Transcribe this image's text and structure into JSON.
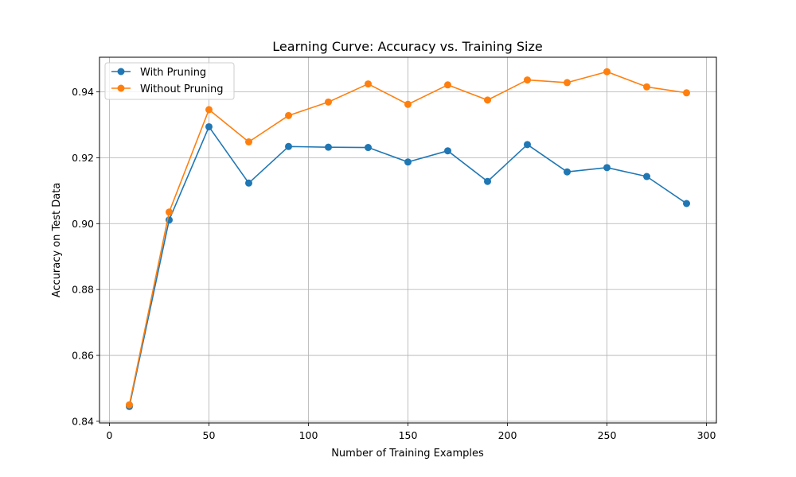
{
  "chart_data": {
    "type": "line",
    "title": "Learning Curve: Accuracy vs. Training Size",
    "xlabel": "Number of Training Examples",
    "ylabel": "Accuracy on Test Data",
    "xlim": [
      -5,
      305
    ],
    "ylim": [
      0.8395,
      0.9505
    ],
    "xticks": [
      0,
      50,
      100,
      150,
      200,
      250,
      300
    ],
    "yticks": [
      0.84,
      0.86,
      0.88,
      0.9,
      0.92,
      0.94
    ],
    "ytick_labels": [
      "0.84",
      "0.86",
      "0.88",
      "0.90",
      "0.92",
      "0.94"
    ],
    "grid": true,
    "legend_position": "upper-left",
    "x": [
      10,
      30,
      50,
      70,
      90,
      110,
      130,
      150,
      170,
      190,
      210,
      230,
      250,
      270,
      290
    ],
    "series": [
      {
        "name": "With Pruning",
        "color": "#1f77b4",
        "marker": "circle",
        "values": [
          0.8445,
          0.9011,
          0.9294,
          0.9123,
          0.9234,
          0.9232,
          0.9231,
          0.9187,
          0.9221,
          0.9128,
          0.924,
          0.9157,
          0.917,
          0.9143,
          0.9061
        ]
      },
      {
        "name": "Without Pruning",
        "color": "#ff7f0e",
        "marker": "circle",
        "values": [
          0.845,
          0.9035,
          0.9346,
          0.9248,
          0.9328,
          0.9369,
          0.9424,
          0.9362,
          0.9421,
          0.9375,
          0.9436,
          0.9428,
          0.9461,
          0.9415,
          0.9397
        ]
      }
    ]
  }
}
